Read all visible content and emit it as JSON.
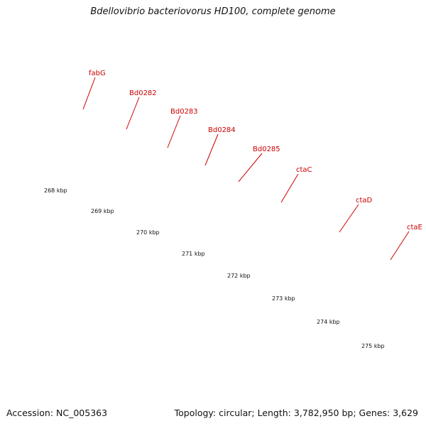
{
  "title": "Bdellovibrio bacteriovorus HD100, complete genome",
  "footer": {
    "accession": "Accession: NC_005363",
    "stats": "Topology: circular; Length: 3,782,950 bp; Genes: 3,629"
  },
  "colors": {
    "backbone": "#8c8c8c",
    "cds_forward": "#ff0000",
    "blue_feature": "#0000ff",
    "lightblue_feature": "#7060d8",
    "navy_feature": "#1a1a6e",
    "gray_feature": "#bfbfbf",
    "cyan_feature": "#00e6f0",
    "olive_feature": "#b8b070",
    "gene_label": "#cc0000",
    "tick": "#006400"
  },
  "scale": {
    "tick_labels": [
      "268 kbp",
      "269 kbp",
      "270 kbp",
      "271 kbp",
      "272 kbp",
      "273 kbp",
      "274 kbp",
      "275 kbp"
    ]
  },
  "gene_labels": [
    "fabG",
    "Bd0282",
    "Bd0283",
    "Bd0284",
    "Bd0285",
    "ctaC",
    "ctaD",
    "ctaE"
  ]
}
